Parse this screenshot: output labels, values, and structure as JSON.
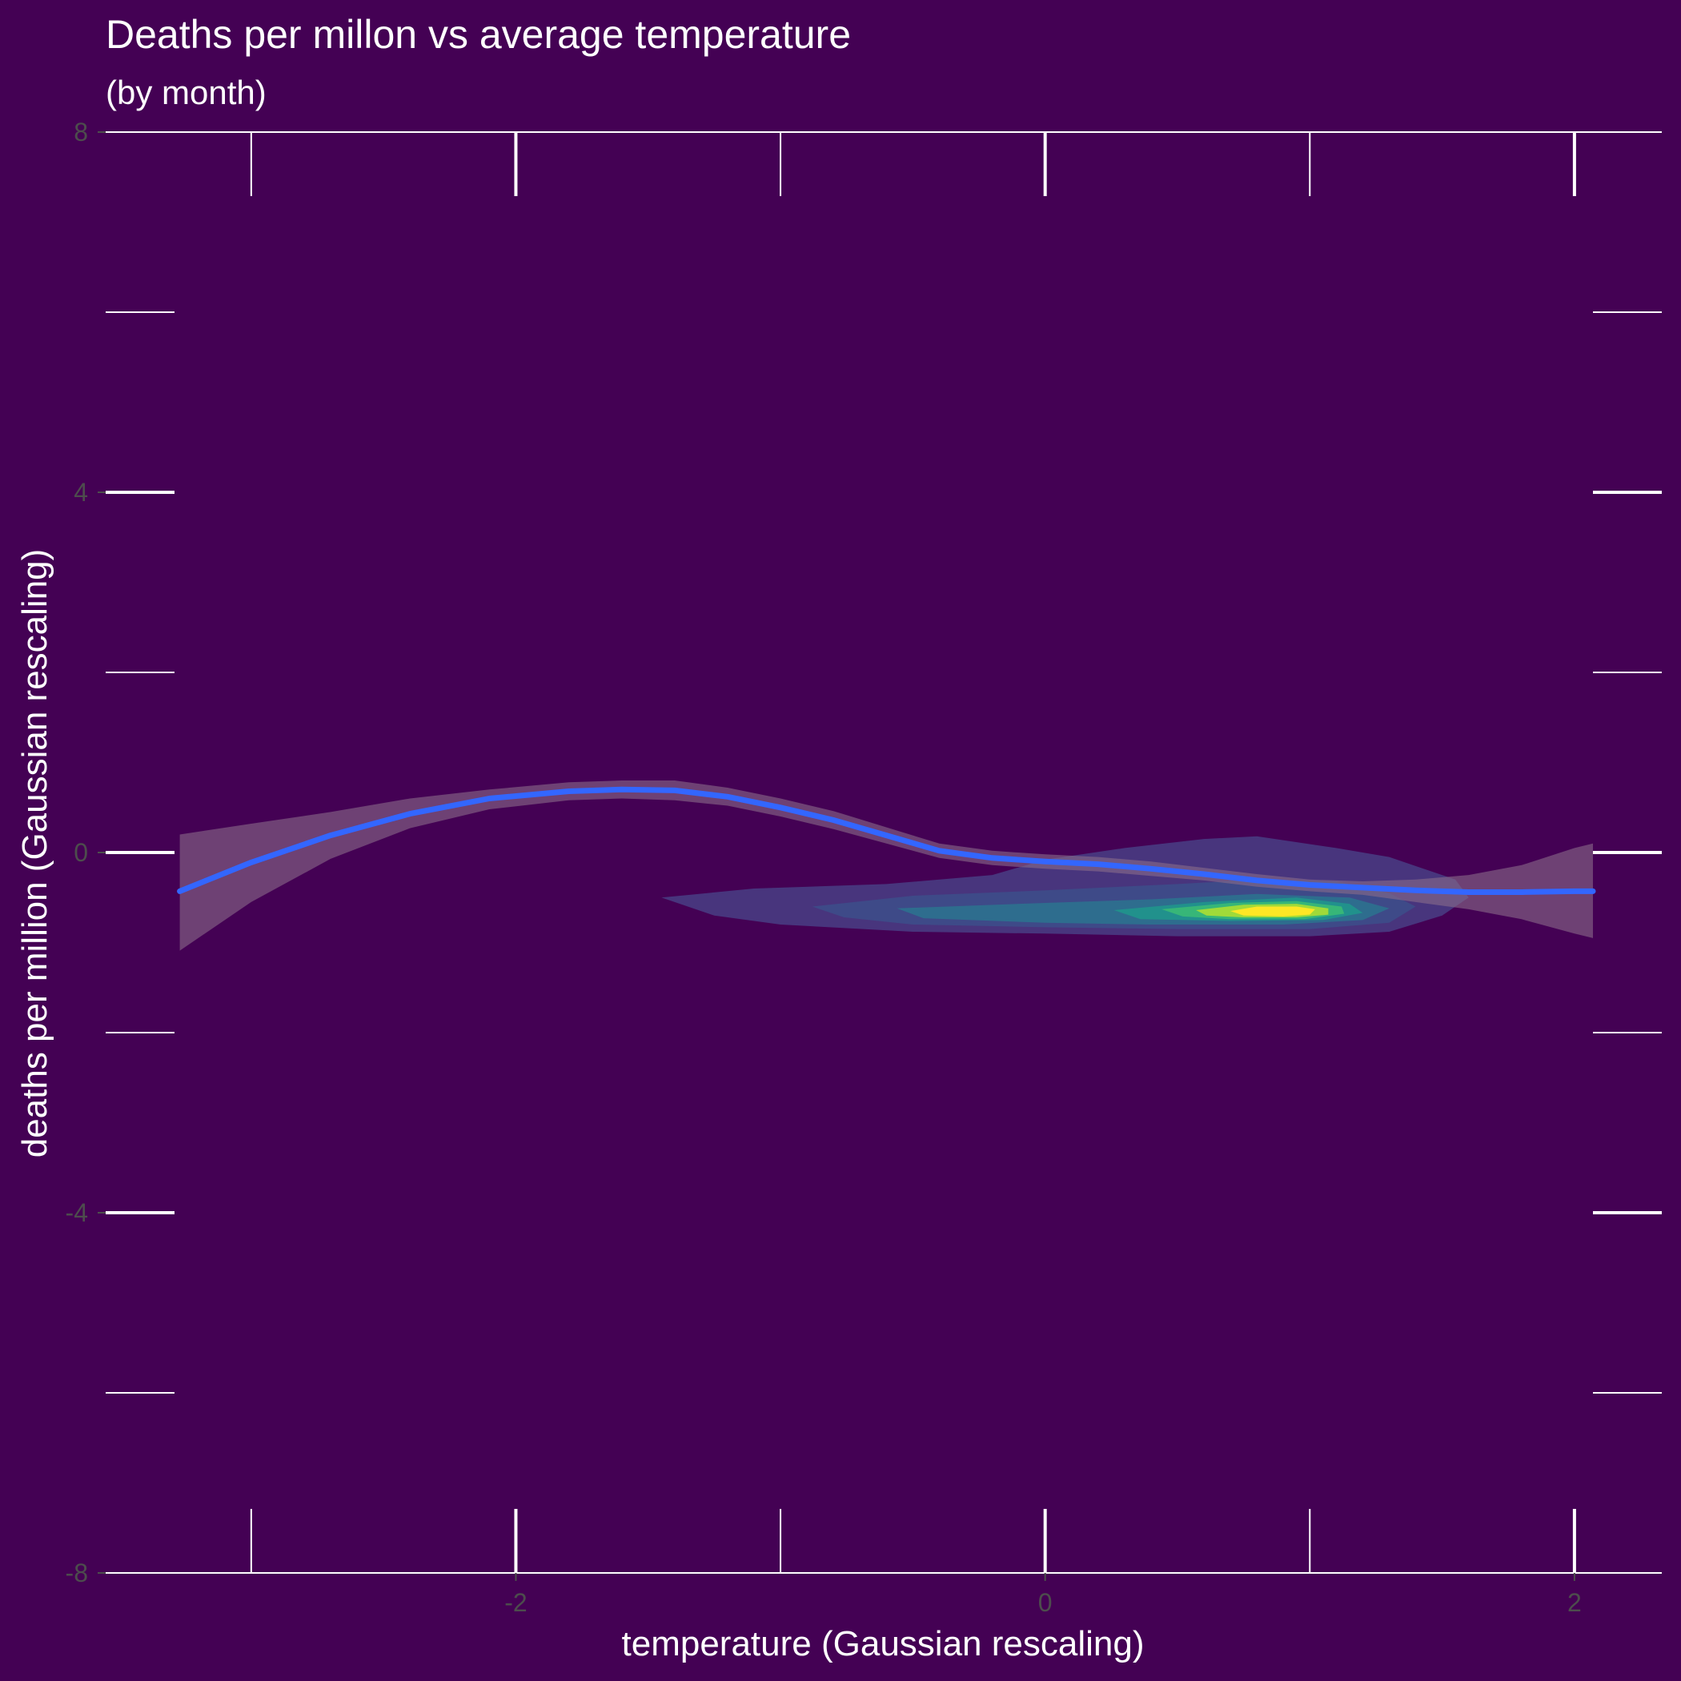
{
  "chart_data": {
    "type": "density-contour-with-smooth",
    "title": "Deaths per millon vs average temperature",
    "subtitle": "(by month)",
    "xlabel": "temperature (Gaussian rescaling)",
    "ylabel": "deaths per million (Gaussian rescaling)",
    "xlim": [
      -3.55,
      2.33
    ],
    "ylim": [
      -8,
      8
    ],
    "x_ticks": [
      -2,
      0,
      2
    ],
    "x_tick_labels": [
      "-2",
      "0",
      "2"
    ],
    "y_ticks": [
      -8,
      -4,
      0,
      4,
      8
    ],
    "y_tick_labels": [
      "-8",
      "-4",
      "0",
      "4",
      "8"
    ],
    "x_rug_major": [
      -2,
      0,
      2
    ],
    "x_rug_minor": [
      -3,
      -1,
      1
    ],
    "y_rug_major": [
      -4,
      0,
      4
    ],
    "y_rug_minor": [
      -6,
      -2,
      2,
      6
    ],
    "grid": false,
    "background_color": "#440154",
    "foreground_color": "#ffffff",
    "tick_label_color": "#4d4d4d",
    "smooth_line": {
      "color": "#3366ff",
      "x": [
        -3.27,
        -3.0,
        -2.7,
        -2.4,
        -2.1,
        -1.8,
        -1.6,
        -1.4,
        -1.2,
        -1.0,
        -0.8,
        -0.6,
        -0.4,
        -0.2,
        0.0,
        0.2,
        0.4,
        0.6,
        0.8,
        1.0,
        1.2,
        1.4,
        1.6,
        1.8,
        2.0,
        2.07
      ],
      "y": [
        -0.43,
        -0.11,
        0.19,
        0.43,
        0.6,
        0.68,
        0.7,
        0.69,
        0.62,
        0.5,
        0.36,
        0.19,
        0.02,
        -0.06,
        -0.1,
        -0.13,
        -0.18,
        -0.24,
        -0.31,
        -0.36,
        -0.39,
        -0.42,
        -0.44,
        -0.44,
        -0.43,
        -0.43
      ],
      "ci_upper": [
        0.2,
        0.32,
        0.45,
        0.6,
        0.7,
        0.78,
        0.8,
        0.8,
        0.72,
        0.6,
        0.46,
        0.28,
        0.1,
        0.02,
        -0.02,
        -0.05,
        -0.1,
        -0.17,
        -0.24,
        -0.3,
        -0.32,
        -0.3,
        -0.25,
        -0.14,
        0.05,
        0.1
      ],
      "ci_lower": [
        -1.09,
        -0.55,
        -0.07,
        0.27,
        0.48,
        0.58,
        0.6,
        0.58,
        0.52,
        0.4,
        0.26,
        0.1,
        -0.06,
        -0.14,
        -0.18,
        -0.21,
        -0.26,
        -0.31,
        -0.38,
        -0.43,
        -0.47,
        -0.55,
        -0.63,
        -0.74,
        -0.9,
        -0.95
      ],
      "ci_color": "#8a6d8a"
    },
    "density_levels": [
      {
        "level": 1,
        "color": "#48357d",
        "polygon": [
          [
            -1.45,
            -0.5
          ],
          [
            -1.1,
            -0.4
          ],
          [
            -0.6,
            -0.35
          ],
          [
            -0.2,
            -0.25
          ],
          [
            0.0,
            -0.08
          ],
          [
            0.3,
            0.05
          ],
          [
            0.6,
            0.15
          ],
          [
            0.8,
            0.18
          ],
          [
            1.1,
            0.05
          ],
          [
            1.3,
            -0.05
          ],
          [
            1.55,
            -0.3
          ],
          [
            1.6,
            -0.5
          ],
          [
            1.5,
            -0.7
          ],
          [
            1.3,
            -0.88
          ],
          [
            1.0,
            -0.93
          ],
          [
            0.5,
            -0.93
          ],
          [
            0.0,
            -0.9
          ],
          [
            -0.5,
            -0.88
          ],
          [
            -1.0,
            -0.8
          ],
          [
            -1.25,
            -0.7
          ]
        ]
      },
      {
        "level": 2,
        "color": "#3e4a88",
        "polygon": [
          [
            -0.88,
            -0.6
          ],
          [
            -0.5,
            -0.48
          ],
          [
            0.0,
            -0.42
          ],
          [
            0.5,
            -0.35
          ],
          [
            0.8,
            -0.3
          ],
          [
            1.1,
            -0.32
          ],
          [
            1.3,
            -0.45
          ],
          [
            1.4,
            -0.6
          ],
          [
            1.3,
            -0.78
          ],
          [
            1.0,
            -0.85
          ],
          [
            0.5,
            -0.85
          ],
          [
            0.0,
            -0.83
          ],
          [
            -0.5,
            -0.8
          ],
          [
            -0.76,
            -0.72
          ]
        ]
      },
      {
        "level": 3,
        "color": "#2e6d8e",
        "polygon": [
          [
            -0.56,
            -0.62
          ],
          [
            0.0,
            -0.56
          ],
          [
            0.4,
            -0.52
          ],
          [
            0.8,
            -0.46
          ],
          [
            1.15,
            -0.5
          ],
          [
            1.3,
            -0.62
          ],
          [
            1.2,
            -0.75
          ],
          [
            0.9,
            -0.8
          ],
          [
            0.4,
            -0.8
          ],
          [
            0.0,
            -0.78
          ],
          [
            -0.46,
            -0.73
          ]
        ]
      },
      {
        "level": 4,
        "color": "#21918c",
        "polygon": [
          [
            0.26,
            -0.64
          ],
          [
            0.6,
            -0.55
          ],
          [
            0.95,
            -0.5
          ],
          [
            1.15,
            -0.57
          ],
          [
            1.2,
            -0.67
          ],
          [
            1.05,
            -0.75
          ],
          [
            0.7,
            -0.76
          ],
          [
            0.36,
            -0.74
          ]
        ]
      },
      {
        "level": 5,
        "color": "#37b678",
        "polygon": [
          [
            0.44,
            -0.63
          ],
          [
            0.7,
            -0.56
          ],
          [
            0.95,
            -0.54
          ],
          [
            1.12,
            -0.6
          ],
          [
            1.13,
            -0.68
          ],
          [
            0.98,
            -0.74
          ],
          [
            0.7,
            -0.74
          ],
          [
            0.52,
            -0.71
          ]
        ]
      },
      {
        "level": 6,
        "color": "#a0da39",
        "polygon": [
          [
            0.57,
            -0.64
          ],
          [
            0.75,
            -0.58
          ],
          [
            0.95,
            -0.57
          ],
          [
            1.07,
            -0.62
          ],
          [
            1.07,
            -0.69
          ],
          [
            0.95,
            -0.72
          ],
          [
            0.75,
            -0.72
          ],
          [
            0.61,
            -0.7
          ]
        ]
      },
      {
        "level": 7,
        "color": "#fde725",
        "polygon": [
          [
            0.7,
            -0.65
          ],
          [
            0.8,
            -0.6
          ],
          [
            0.95,
            -0.6
          ],
          [
            1.02,
            -0.63
          ],
          [
            1.0,
            -0.69
          ],
          [
            0.9,
            -0.71
          ],
          [
            0.75,
            -0.7
          ]
        ]
      }
    ]
  }
}
